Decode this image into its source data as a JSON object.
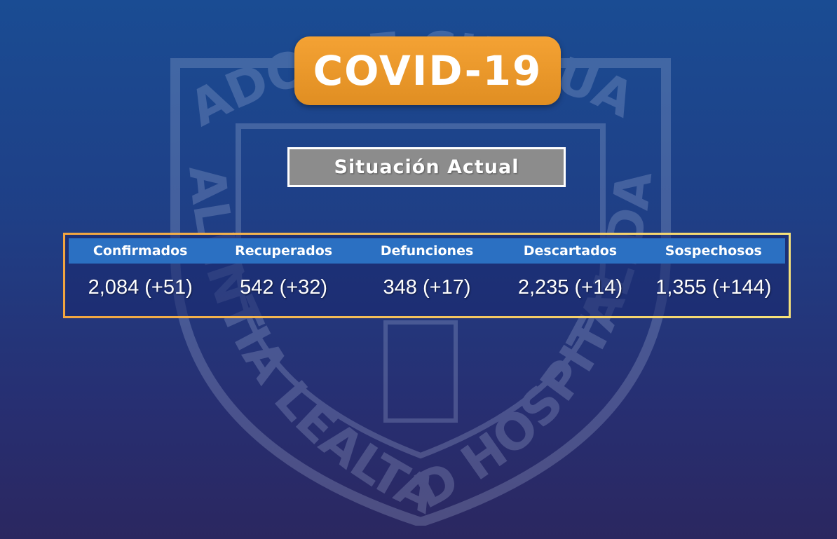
{
  "title": "COVID-19",
  "subtitle": "Situación Actual",
  "seal": {
    "top_text": "ESTADO DE CHIHUAHUA",
    "bottom_text": "VALENTIA LEALTAD HOSPITALIDAD"
  },
  "colors": {
    "title_bg": "#f0a030",
    "subtitle_bg": "#8c8c8c",
    "header_bg": "#2b70c2"
  },
  "stats": [
    {
      "label": "Confirmados",
      "value": "2,084 (+51)"
    },
    {
      "label": "Recuperados",
      "value": "542 (+32)"
    },
    {
      "label": "Defunciones",
      "value": "348 (+17)"
    },
    {
      "label": "Descartados",
      "value": "2,235 (+14)"
    },
    {
      "label": "Sospechosos",
      "value": "1,355 (+144)"
    }
  ]
}
